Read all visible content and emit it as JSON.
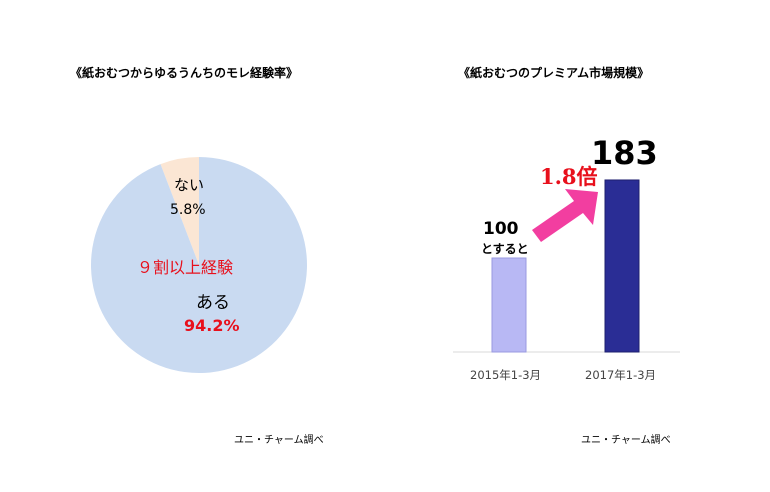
{
  "left": {
    "title": "《紙おむつからゆるうんちのモレ経験率》",
    "source": "ユニ・チャーム調べ",
    "center_annotation": "９割以上経験"
  },
  "right": {
    "title": "《紙おむつのプレミアム市場規模》",
    "source": "ユニ・チャーム調べ",
    "base_note": "とすると",
    "growth_label": "1.8倍",
    "value_labels": [
      "100",
      "183"
    ]
  },
  "chart_data": [
    {
      "type": "pie",
      "title": "《紙おむつからゆるうんちのモレ経験率》",
      "slices": [
        {
          "label": "ない",
          "value": 5.8,
          "display": "5.8%",
          "color": "#fbe6d4"
        },
        {
          "label": "ある",
          "value": 94.2,
          "display": "94.2%",
          "color": "#c9daf1"
        }
      ]
    },
    {
      "type": "bar",
      "title": "《紙おむつのプレミアム市場規模》",
      "categories": [
        "2015年1-3月",
        "2017年1-3月"
      ],
      "values": [
        100,
        183
      ],
      "colors": [
        "#b8b8f4",
        "#2a2d95"
      ],
      "ylim": [
        0,
        200
      ],
      "xlabel": "",
      "ylabel": ""
    }
  ]
}
